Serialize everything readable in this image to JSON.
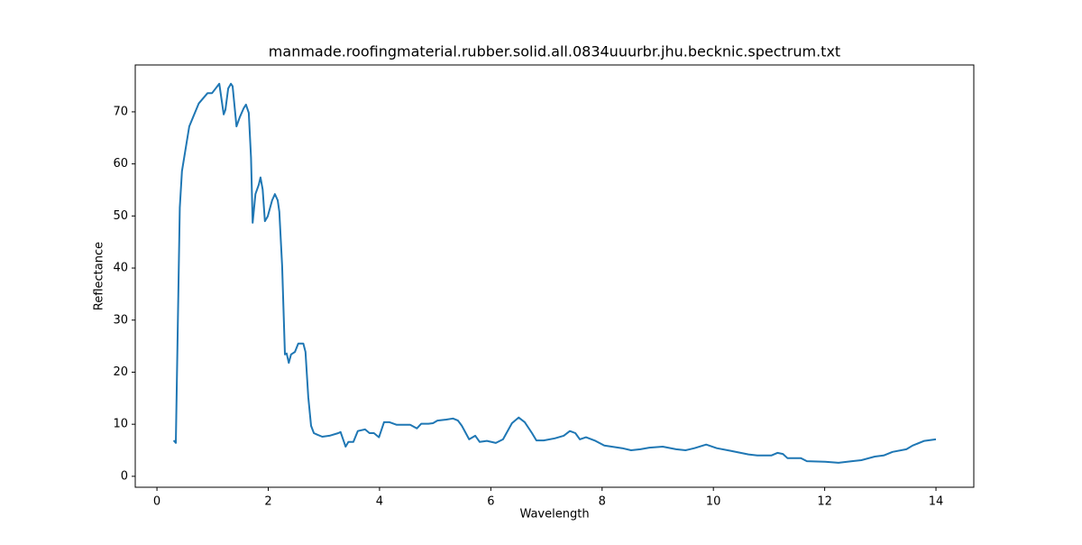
{
  "chart_data": {
    "type": "line",
    "title": "manmade.roofingmaterial.rubber.solid.all.0834uuurbr.jhu.becknic.spectrum.txt",
    "xlabel": "Wavelength",
    "ylabel": "Reflectance",
    "x": [
      0.3,
      0.34,
      0.41,
      0.45,
      0.58,
      0.75,
      0.91,
      0.99,
      1.07,
      1.12,
      1.2,
      1.23,
      1.28,
      1.33,
      1.36,
      1.43,
      1.49,
      1.56,
      1.6,
      1.65,
      1.69,
      1.72,
      1.77,
      1.83,
      1.86,
      1.9,
      1.94,
      1.99,
      2.07,
      2.12,
      2.17,
      2.2,
      2.25,
      2.3,
      2.33,
      2.37,
      2.41,
      2.48,
      2.54,
      2.63,
      2.67,
      2.72,
      2.77,
      2.82,
      2.88,
      2.97,
      3.1,
      3.26,
      3.3,
      3.39,
      3.44,
      3.53,
      3.61,
      3.74,
      3.82,
      3.9,
      3.99,
      4.08,
      4.18,
      4.31,
      4.55,
      4.67,
      4.75,
      4.88,
      4.96,
      5.04,
      5.2,
      5.32,
      5.41,
      5.48,
      5.61,
      5.72,
      5.8,
      5.93,
      6.09,
      6.22,
      6.38,
      6.5,
      6.61,
      6.74,
      6.82,
      6.95,
      7.15,
      7.31,
      7.42,
      7.52,
      7.6,
      7.71,
      7.88,
      8.04,
      8.36,
      8.52,
      8.69,
      8.85,
      9.09,
      9.33,
      9.5,
      9.66,
      9.87,
      10.06,
      10.31,
      10.63,
      10.79,
      11.04,
      11.15,
      11.25,
      11.33,
      11.57,
      11.68,
      12.01,
      12.25,
      12.49,
      12.66,
      12.9,
      13.06,
      13.22,
      13.47,
      13.58,
      13.79,
      14.0
    ],
    "series": [
      {
        "name": "Reflectance",
        "color": "#1f77b4",
        "values": [
          6.9,
          6.4,
          51.6,
          58.6,
          67.2,
          71.6,
          73.6,
          73.6,
          74.7,
          75.4,
          69.5,
          70.4,
          74.5,
          75.4,
          74.9,
          67.2,
          69,
          70.7,
          71.4,
          69.8,
          61.2,
          48.7,
          54.2,
          56,
          57.4,
          55.1,
          49,
          49.9,
          53,
          54.2,
          53,
          50.8,
          40.4,
          23.4,
          23.6,
          21.8,
          23.4,
          23.9,
          25.5,
          25.5,
          23.9,
          15.2,
          9.7,
          8.3,
          8,
          7.6,
          7.8,
          8.3,
          8.5,
          5.7,
          6.6,
          6.6,
          8.7,
          9,
          8.3,
          8.3,
          7.5,
          10.4,
          10.4,
          9.9,
          9.9,
          9.2,
          10.1,
          10.1,
          10.2,
          10.7,
          10.9,
          11.1,
          10.7,
          9.7,
          7.1,
          7.8,
          6.6,
          6.8,
          6.4,
          7.1,
          10.2,
          11.3,
          10.4,
          8.3,
          6.9,
          6.9,
          7.3,
          7.8,
          8.7,
          8.3,
          7.1,
          7.5,
          6.8,
          5.9,
          5.4,
          5,
          5.2,
          5.5,
          5.7,
          5.2,
          5,
          5.4,
          6.1,
          5.4,
          4.9,
          4.2,
          4,
          4,
          4.5,
          4.3,
          3.5,
          3.5,
          2.9,
          2.8,
          2.6,
          2.9,
          3.1,
          3.8,
          4,
          4.7,
          5.2,
          5.9,
          6.8,
          7.1
        ]
      }
    ],
    "xlim": [
      -0.39,
      14.68
    ],
    "xticks": [
      0,
      2,
      4,
      6,
      8,
      10,
      12,
      14
    ],
    "ylim": [
      -2.1,
      79.0
    ],
    "yticks": [
      0,
      10,
      20,
      30,
      40,
      50,
      60,
      70
    ]
  }
}
